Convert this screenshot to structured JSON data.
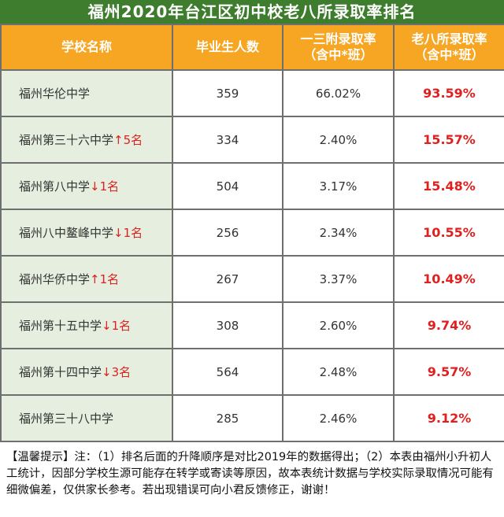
{
  "title": "福州2020年台江区初中校老八所录取率排名",
  "table": {
    "headers": {
      "school": "学校名称",
      "graduates": "毕业生人数",
      "rate_yisan_line1": "一三附录取率",
      "rate_yisan_line2": "（含中*班）",
      "rate_laoba_line1": "老八所录取率",
      "rate_laoba_line2": "（含中*班）"
    },
    "rows": [
      {
        "school": "福州华伦中学",
        "change": "",
        "graduates": "359",
        "rate_yisan": "66.02%",
        "rate_laoba": "93.59%"
      },
      {
        "school": "福州第三十六中学",
        "change": "↑5名",
        "graduates": "334",
        "rate_yisan": "2.40%",
        "rate_laoba": "15.57%"
      },
      {
        "school": "福州第八中学",
        "change": "↓1名",
        "graduates": "504",
        "rate_yisan": "3.17%",
        "rate_laoba": "15.48%"
      },
      {
        "school": "福州八中鳌峰中学",
        "change": "↓1名",
        "graduates": "256",
        "rate_yisan": "2.34%",
        "rate_laoba": "10.55%"
      },
      {
        "school": "福州华侨中学",
        "change": "↑1名",
        "graduates": "267",
        "rate_yisan": "3.37%",
        "rate_laoba": "10.49%"
      },
      {
        "school": "福州第十五中学",
        "change": "↓1名",
        "graduates": "308",
        "rate_yisan": "2.60%",
        "rate_laoba": "9.74%"
      },
      {
        "school": "福州第十四中学",
        "change": "↓3名",
        "graduates": "564",
        "rate_yisan": "2.48%",
        "rate_laoba": "9.57%"
      },
      {
        "school": "福州第三十八中学",
        "change": "",
        "graduates": "285",
        "rate_yisan": "2.46%",
        "rate_laoba": "9.12%"
      }
    ]
  },
  "note": "【温馨提示】注：（1）排名后面的升降顺序是对比2019年的数据得出；（2）本表由福州小升初人工统计，因部分学校生源可能存在转学或寄读等原因，故本表统计数据与学校实际录取情况可能有细微偏差，仅供家长参考。若出现错误可向小君反馈修正，谢谢！",
  "colors": {
    "title_bg": "#3f7d2e",
    "header_bg": "#f6a623",
    "school_col_bg": "#e6efdf",
    "highlight_red": "#e0201f"
  }
}
